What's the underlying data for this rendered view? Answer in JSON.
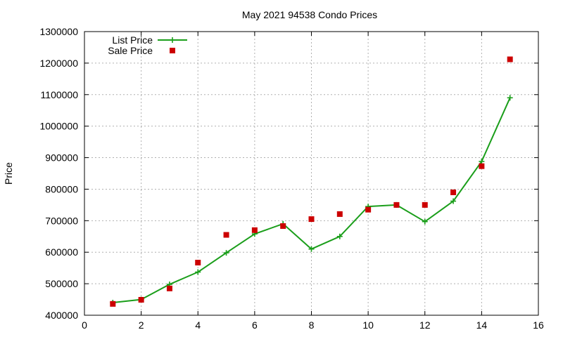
{
  "chart_data": {
    "type": "line",
    "title": "May 2021 94538 Condo Prices",
    "xlabel": "",
    "ylabel": "Price",
    "xlim": [
      0,
      16
    ],
    "ylim": [
      400000,
      1300000
    ],
    "x_ticks": [
      "0",
      "2",
      "4",
      "6",
      "8",
      "10",
      "12",
      "14",
      "16"
    ],
    "y_ticks": [
      "400000",
      "500000",
      "600000",
      "700000",
      "800000",
      "900000",
      "1000000",
      "1100000",
      "1200000",
      "1300000"
    ],
    "grid": true,
    "legend_position": "top-left",
    "series": [
      {
        "name": "List Price",
        "style": "line-with-plus-markers",
        "color": "#1a9e1a",
        "x": [
          1,
          2,
          3,
          4,
          5,
          6,
          7,
          8,
          9,
          10,
          11,
          12,
          13,
          14,
          15
        ],
        "values": [
          440000,
          450000,
          498000,
          537000,
          598000,
          658000,
          690000,
          610000,
          650000,
          745000,
          750000,
          697000,
          762000,
          888000,
          1090000
        ]
      },
      {
        "name": "Sale Price",
        "style": "square-markers",
        "color": "#cc0000",
        "x": [
          1,
          2,
          3,
          4,
          5,
          6,
          7,
          8,
          9,
          10,
          11,
          12,
          13,
          14,
          15
        ],
        "values": [
          436000,
          449000,
          485000,
          567000,
          655000,
          670000,
          683000,
          705000,
          721000,
          735000,
          750000,
          750000,
          790000,
          873000,
          1212000
        ]
      }
    ]
  }
}
